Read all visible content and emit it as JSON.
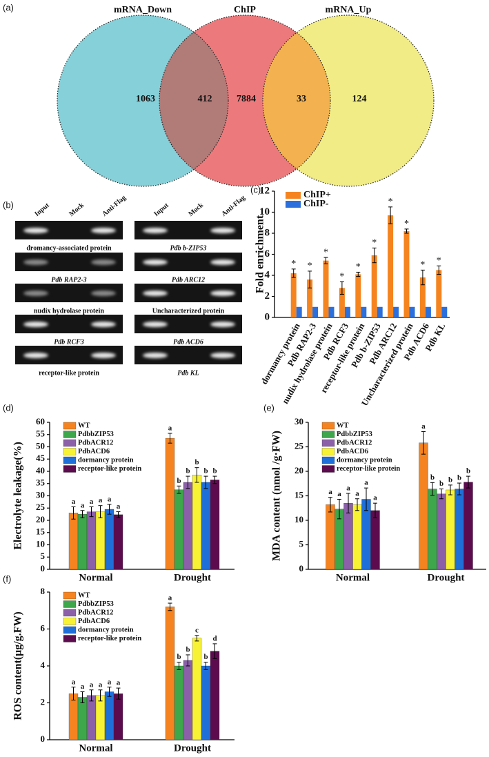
{
  "gel": {
    "panel_label": "(b)",
    "lanes": [
      "Input",
      "Mock",
      "Anti-Flag"
    ],
    "genes": [
      "dromancy-associated protein",
      "Pdb RAP2-3",
      "nudix hydrolase protein",
      "Pdb RCF3",
      "receptor-like protein",
      "Pdb b-ZIP53",
      "Pdb ARC12",
      "Uncharacterized protein",
      "Pdb ACD6",
      "Pdb KL"
    ]
  },
  "chart_data": [
    {
      "type": "venn",
      "panel_label": "(a)",
      "sets": [
        {
          "name": "mRNA_Down",
          "color": "#86d0d9"
        },
        {
          "name": "ChIP",
          "color": "#ec7a7c"
        },
        {
          "name": "mRNA_Up",
          "color": "#f1ec86"
        }
      ],
      "overlap_colors": [
        "#b17b78",
        "#f3b24f"
      ],
      "regions": [
        1063,
        412,
        7884,
        33,
        124
      ]
    },
    {
      "type": "bar",
      "panel_label": "(c)",
      "ylabel": "Fold enrichment",
      "categories": [
        "dormancy protein",
        "Pdb RAP2-3",
        "nudix hydrolase protein",
        "Pdb RCF3",
        "receptor-like protein",
        "Pdb b-ZIP53",
        "Pdb ARC12",
        "Uncharacterized protein",
        "Pdb ACD6",
        "Pdb KL"
      ],
      "series": [
        {
          "name": "ChIP+",
          "color": "#f5841f",
          "values": [
            4.2,
            3.6,
            5.4,
            2.8,
            4.1,
            5.9,
            9.7,
            8.2,
            3.8,
            4.5
          ],
          "errors": [
            0.4,
            0.8,
            0.3,
            0.6,
            0.2,
            0.7,
            0.8,
            0.2,
            0.7,
            0.4
          ],
          "markers": [
            "*",
            "*",
            "*",
            "*",
            "*",
            "*",
            "*",
            "*",
            "*",
            "*"
          ]
        },
        {
          "name": "ChIP-",
          "color": "#2a6fdb",
          "values": [
            1,
            1,
            1,
            1,
            1,
            1,
            1,
            1,
            1,
            1
          ]
        }
      ],
      "ylim": [
        0,
        12
      ],
      "yticks": [
        0,
        2,
        4,
        6,
        8,
        10,
        12
      ],
      "legend": "upper left"
    },
    {
      "type": "grouped_bar",
      "panel_label": "(d)",
      "ylabel": "Electrolyte leakage(%)",
      "categories": [
        "Normal",
        "Drought"
      ],
      "series": [
        {
          "name": "WT",
          "color": "#f5831f",
          "values": [
            23,
            53.5
          ],
          "errors": [
            2.5,
            2
          ],
          "letters": [
            "a",
            "a"
          ]
        },
        {
          "name": "PdbbZIP53",
          "color": "#3ea64b",
          "values": [
            22.5,
            32.5
          ],
          "errors": [
            1.5,
            1.5
          ],
          "letters": [
            "a",
            "b"
          ]
        },
        {
          "name": "PdbACR12",
          "color": "#8b60a9",
          "values": [
            23.5,
            35.5
          ],
          "errors": [
            2,
            2.5
          ],
          "letters": [
            "a",
            "b"
          ]
        },
        {
          "name": "PdbACD6",
          "color": "#f8f234",
          "values": [
            23.5,
            38.5
          ],
          "errors": [
            2.5,
            3
          ],
          "letters": [
            "a",
            "b"
          ]
        },
        {
          "name": "dormancy protein",
          "color": "#1f6fd9",
          "values": [
            24.5,
            35.5
          ],
          "errors": [
            2,
            2.5
          ],
          "letters": [
            "a",
            "b"
          ]
        },
        {
          "name": "receptor-like protein",
          "color": "#5c0c4e",
          "values": [
            22.3,
            36.5
          ],
          "errors": [
            1.2,
            1.5
          ],
          "letters": [
            "a",
            "b"
          ]
        }
      ],
      "ylim": [
        0,
        60
      ],
      "yticks": [
        0,
        5,
        10,
        15,
        20,
        25,
        30,
        35,
        40,
        45,
        50,
        55,
        60
      ],
      "legend": "upper left"
    },
    {
      "type": "grouped_bar",
      "panel_label": "(e)",
      "ylabel": "MDA content (nmol /g·FW)",
      "categories": [
        "Normal",
        "Drought"
      ],
      "series": [
        {
          "name": "WT",
          "color": "#f5831f",
          "values": [
            13.2,
            25.8
          ],
          "errors": [
            1.5,
            2.3
          ],
          "letters": [
            "a",
            "a"
          ]
        },
        {
          "name": "PdbbZIP53",
          "color": "#3ea64b",
          "values": [
            12.3,
            16.4
          ],
          "errors": [
            2,
            1.3
          ],
          "letters": [
            "a",
            "b"
          ]
        },
        {
          "name": "PdbACR12",
          "color": "#8b60a9",
          "values": [
            13.5,
            15.4
          ],
          "errors": [
            2,
            1
          ],
          "letters": [
            "a",
            "b"
          ]
        },
        {
          "name": "PdbACD6",
          "color": "#f8f234",
          "values": [
            13.2,
            16.2
          ],
          "errors": [
            1.2,
            1
          ],
          "letters": [
            "a",
            "b"
          ]
        },
        {
          "name": "dormancy protein",
          "color": "#1f6fd9",
          "values": [
            14.3,
            16.4
          ],
          "errors": [
            2.3,
            1.2
          ],
          "letters": [
            "a",
            "b"
          ]
        },
        {
          "name": "receptor-like protein",
          "color": "#5c0c4e",
          "values": [
            12,
            17.8
          ],
          "errors": [
            1.5,
            1.2
          ],
          "letters": [
            "a",
            "b"
          ]
        }
      ],
      "ylim": [
        0,
        30
      ],
      "yticks": [
        0,
        5,
        10,
        15,
        20,
        25,
        30
      ],
      "legend": "upper left"
    },
    {
      "type": "grouped_bar",
      "panel_label": "(f)",
      "ylabel": "ROS content(μg/g.FW)",
      "categories": [
        "Normal",
        "Drought"
      ],
      "series": [
        {
          "name": "WT",
          "color": "#f5831f",
          "values": [
            2.5,
            7.2
          ],
          "errors": [
            0.35,
            0.2
          ],
          "letters": [
            "a",
            "a"
          ]
        },
        {
          "name": "PdbbZIP53",
          "color": "#3ea64b",
          "values": [
            2.3,
            4.0
          ],
          "errors": [
            0.3,
            0.2
          ],
          "letters": [
            "a",
            "b"
          ]
        },
        {
          "name": "PdbACR12",
          "color": "#8b60a9",
          "values": [
            2.4,
            4.3
          ],
          "errors": [
            0.3,
            0.3
          ],
          "letters": [
            "a",
            "b"
          ]
        },
        {
          "name": "PdbACD6",
          "color": "#f8f234",
          "values": [
            2.4,
            5.5
          ],
          "errors": [
            0.3,
            0.15
          ],
          "letters": [
            "a",
            "c"
          ]
        },
        {
          "name": "dormancy protein",
          "color": "#1f6fd9",
          "values": [
            2.6,
            4.0
          ],
          "errors": [
            0.25,
            0.2
          ],
          "letters": [
            "a",
            "b"
          ]
        },
        {
          "name": "receptor-like protein",
          "color": "#5c0c4e",
          "values": [
            2.5,
            4.8
          ],
          "errors": [
            0.3,
            0.4
          ],
          "letters": [
            "a",
            "d"
          ]
        }
      ],
      "ylim": [
        0,
        8
      ],
      "yticks": [
        0,
        2,
        4,
        6,
        8
      ],
      "legend": "upper left"
    }
  ]
}
